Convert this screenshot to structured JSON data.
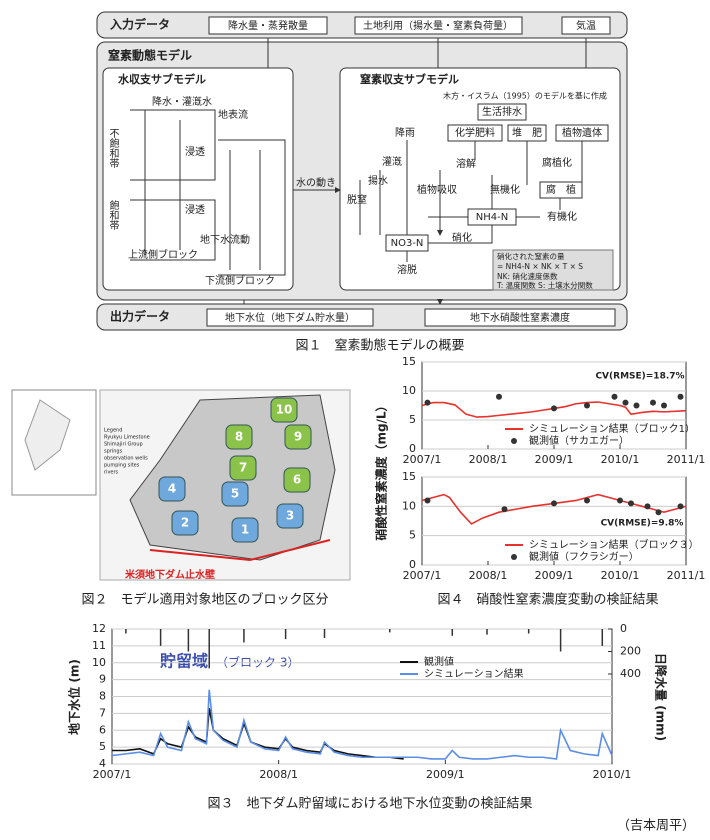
{
  "fig1": {
    "input_title": "入力データ",
    "inputs": [
      "降水量・蒸発散量",
      "土地利用（揚水量・窒素負荷量）",
      "気温"
    ],
    "model_title": "窒素動態モデル",
    "water_title": "水収支サブモデル",
    "water_labels": [
      "降水・灌漑水",
      "地表流",
      "不飽和帯",
      "浸透",
      "浸透",
      "飽和帯",
      "地下水流動",
      "上流側ブロック",
      "下流側ブロック"
    ],
    "flow_label": "水の動き",
    "nitrogen_title": "窒素収支サブモデル",
    "source": "木方・イスラム（1995）のモデルを基に作成",
    "nitrogen_labels": [
      "生活排水",
      "降雨",
      "化学肥料",
      "堆　肥",
      "植物遺体",
      "灌漑",
      "揚水",
      "溶解",
      "腐植化",
      "脱窒",
      "植物吸収",
      "無機化",
      "腐　植",
      "NH4-N",
      "有機化",
      "NO3-N",
      "硝化",
      "溶脱"
    ],
    "note": [
      "硝化された窒素の量",
      "= NH4-N × NK × T × S",
      "NK: 硝化速度係数",
      "T: 温度関数 S: 土壌水分関数"
    ],
    "output_title": "出力データ",
    "outputs": [
      "地下水位（地下ダム貯水量）",
      "地下水硝酸性窒素濃度"
    ],
    "caption": "図１　窒素動態モデルの概要"
  },
  "fig2": {
    "blocks": [
      "1",
      "2",
      "3",
      "4",
      "5",
      "6",
      "7",
      "8",
      "9",
      "10"
    ],
    "wall_label": "米須地下ダム止水壁",
    "legend": [
      "Legend",
      "Ryukyu Limestone",
      "Shimajiri Group",
      "springs",
      "observation wells",
      "pumping sites",
      "rivers"
    ],
    "caption": "図２　モデル適用対象地区のブロック区分"
  },
  "fig4": {
    "y_label": "硝酸性窒素濃度（mg/L）",
    "caption": "図４　硝酸性窒素濃度変動の検証結果",
    "charts": [
      {
        "type": "line",
        "annotation": "CV(RMSE)=18.7%",
        "ylim": [
          0,
          15
        ],
        "yticks": [
          0,
          5,
          10,
          15
        ],
        "xlim": [
          0,
          48
        ],
        "xticks": [
          {
            "value": 0,
            "label": "2007/1"
          },
          {
            "value": 12,
            "label": "2008/1"
          },
          {
            "value": 24,
            "label": "2009/1"
          },
          {
            "value": 36,
            "label": "2010/1"
          },
          {
            "value": 48,
            "label": "2011/1"
          }
        ],
        "series": [
          {
            "name": "シミュレーション結果（ブロック1）",
            "color": "#e8322e",
            "kind": "line",
            "x": [
              0,
              2,
              4,
              6,
              8,
              10,
              12,
              14,
              16,
              18,
              20,
              22,
              24,
              26,
              28,
              30,
              32,
              34,
              36,
              37,
              38,
              40,
              42,
              44,
              46,
              48
            ],
            "values": [
              7.5,
              8,
              8,
              7.6,
              6,
              5.5,
              5.6,
              5.8,
              6,
              6.2,
              6.4,
              6.7,
              7,
              7.3,
              7.8,
              8,
              8.1,
              7.8,
              7.5,
              7.2,
              6,
              6.3,
              6.5,
              6.4,
              6.5,
              6.6
            ]
          },
          {
            "name": "観測値（サカエガー）",
            "color": "#333333",
            "kind": "marker",
            "x": [
              1,
              14,
              24,
              30,
              35,
              37,
              39,
              42,
              44,
              47
            ],
            "values": [
              8,
              9,
              7,
              7.5,
              9,
              8,
              7.5,
              8,
              7.5,
              9
            ]
          }
        ]
      },
      {
        "type": "line",
        "annotation": "CV(RMSE)=9.8%",
        "ylim": [
          0,
          15
        ],
        "yticks": [
          0,
          5,
          10,
          15
        ],
        "xlim": [
          0,
          48
        ],
        "xticks": [
          {
            "value": 0,
            "label": "2007/1"
          },
          {
            "value": 12,
            "label": "2008/1"
          },
          {
            "value": 24,
            "label": "2009/1"
          },
          {
            "value": 36,
            "label": "2010/1"
          },
          {
            "value": 48,
            "label": "2011/1"
          }
        ],
        "series": [
          {
            "name": "シミュレーション結果（ブロック３）",
            "color": "#e8322e",
            "kind": "line",
            "x": [
              0,
              2,
              4,
              5,
              7,
              9,
              11,
              14,
              17,
              20,
              24,
              28,
              32,
              34,
              36,
              38,
              40,
              42,
              44,
              46,
              48
            ],
            "values": [
              11,
              11.5,
              12,
              11.5,
              9,
              7,
              8,
              9,
              9.5,
              10,
              10.5,
              11,
              12,
              11.5,
              11,
              10.5,
              10,
              9.5,
              9,
              9.5,
              10
            ]
          },
          {
            "name": "観測値（フクラシガー）",
            "color": "#333333",
            "kind": "marker",
            "x": [
              1,
              15,
              24,
              30,
              36,
              38,
              41,
              43,
              47
            ],
            "values": [
              11,
              9.5,
              10.5,
              11,
              11,
              10.5,
              10,
              9,
              10
            ]
          }
        ]
      }
    ]
  },
  "fig3": {
    "type": "line",
    "title": "貯留域",
    "subtitle": "（ブロック 3）",
    "y_label": "地下水位 (m)",
    "y2_label": "日降水量 (mm)",
    "ylim": [
      4,
      12
    ],
    "yticks": [
      4,
      5,
      6,
      7,
      8,
      9,
      10,
      11,
      12
    ],
    "y2lim": [
      0,
      1200
    ],
    "y2ticks": [
      0,
      200,
      400
    ],
    "xlim": [
      0,
      36
    ],
    "xticks": [
      {
        "value": 0,
        "label": "2007/1"
      },
      {
        "value": 12,
        "label": "2008/1"
      },
      {
        "value": 24,
        "label": "2009/1"
      },
      {
        "value": 36,
        "label": "2010/1"
      }
    ],
    "caption": "図３　地下ダム貯留域における地下水位変動の検証結果",
    "series": [
      {
        "name": "観測値",
        "color": "#111111",
        "kind": "line",
        "x": [
          0,
          1,
          2,
          3,
          3.5,
          4,
          5,
          5.5,
          6,
          6.8,
          7,
          7.3,
          8,
          9,
          9.5,
          10,
          11,
          12,
          12.5,
          13,
          14,
          15,
          15.3,
          16,
          17,
          18,
          19,
          20,
          21
        ],
        "values": [
          4.8,
          4.8,
          4.9,
          4.6,
          5.5,
          5.2,
          5,
          6.2,
          5.6,
          5.3,
          7.3,
          6,
          5.5,
          5.1,
          6.4,
          5.3,
          5,
          4.9,
          5.5,
          5,
          4.8,
          4.7,
          5.2,
          4.8,
          4.6,
          4.5,
          4.4,
          4.4,
          4.3
        ]
      },
      {
        "name": "シミュレーション結果",
        "color": "#5b8ee6",
        "kind": "line",
        "x": [
          0,
          1,
          2,
          3,
          3.5,
          4,
          5,
          5.5,
          6,
          6.8,
          7,
          7.3,
          8,
          9,
          9.5,
          10,
          11,
          12,
          12.5,
          13,
          14,
          15,
          15.3,
          16,
          17,
          18,
          19,
          20,
          21,
          22,
          23,
          24,
          24.5,
          25,
          26,
          27,
          28,
          29,
          30,
          31,
          32,
          32.3,
          33,
          34,
          35,
          35.3,
          36
        ],
        "values": [
          4.5,
          4.6,
          4.7,
          4.5,
          5.8,
          5,
          4.8,
          6.5,
          5.5,
          5.2,
          8.4,
          6,
          5.4,
          5,
          6.6,
          5.3,
          4.9,
          4.8,
          5.6,
          4.9,
          4.7,
          4.6,
          5.3,
          4.7,
          4.5,
          4.4,
          4.4,
          4.4,
          4.4,
          4.4,
          4.3,
          4.3,
          4.8,
          4.4,
          4.3,
          4.3,
          4.4,
          4.5,
          4.4,
          4.4,
          4.3,
          6,
          4.8,
          4.6,
          4.5,
          5.8,
          4.5
        ]
      },
      {
        "color": "#333333",
        "kind": "bar",
        "axis": "y2",
        "x": [
          1,
          3.5,
          5.5,
          7,
          9.5,
          12.5,
          15.3,
          20,
          24.5,
          27,
          30,
          32.3,
          35.3
        ],
        "values": [
          40,
          150,
          200,
          350,
          120,
          90,
          80,
          30,
          60,
          50,
          40,
          200,
          150
        ]
      }
    ]
  },
  "footer": "（吉本周平）"
}
